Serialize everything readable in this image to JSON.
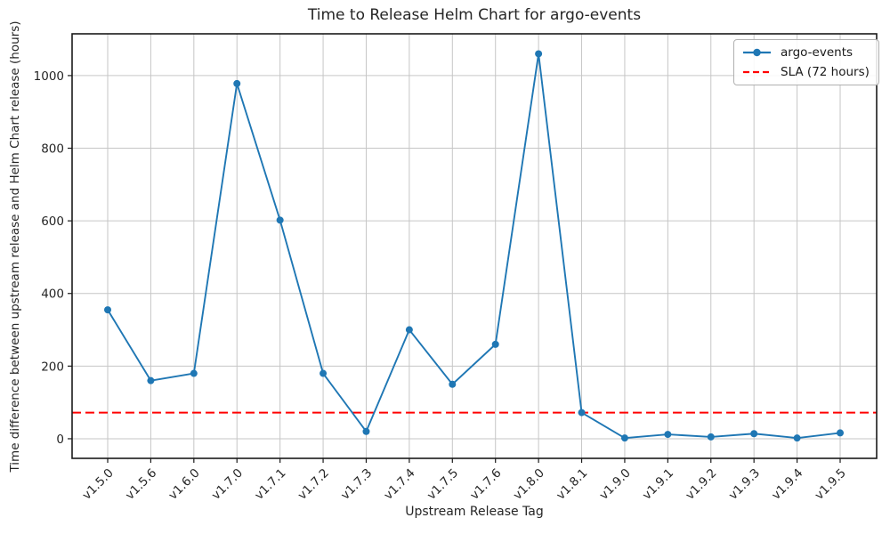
{
  "chart_data": {
    "type": "line",
    "title": "Time to Release Helm Chart for argo-events",
    "xlabel": "Upstream Release Tag",
    "ylabel": "Time difference between upstream release and Helm Chart release (hours)",
    "categories": [
      "v1.5.0",
      "v1.5.6",
      "v1.6.0",
      "v1.7.0",
      "v1.7.1",
      "v1.7.2",
      "v1.7.3",
      "v1.7.4",
      "v1.7.5",
      "v1.7.6",
      "v1.8.0",
      "v1.8.1",
      "v1.9.0",
      "v1.9.1",
      "v1.9.2",
      "v1.9.3",
      "v1.9.4",
      "v1.9.5"
    ],
    "series": [
      {
        "name": "argo-events",
        "color": "#1f77b4",
        "marker": "circle",
        "values": [
          355,
          160,
          180,
          978,
          602,
          180,
          20,
          300,
          150,
          260,
          1060,
          72,
          2,
          12,
          5,
          14,
          2,
          16
        ]
      }
    ],
    "reference_lines": [
      {
        "name": "SLA (72 hours)",
        "value": 72,
        "color": "#ff0000",
        "style": "dashed"
      }
    ],
    "yticks": [
      0,
      200,
      400,
      600,
      800,
      1000
    ],
    "ylim": [
      -54,
      1115
    ],
    "grid": true,
    "grid_color": "#c6c6c6",
    "axis_color": "#1a1a1a",
    "legend_position": "upper right"
  }
}
